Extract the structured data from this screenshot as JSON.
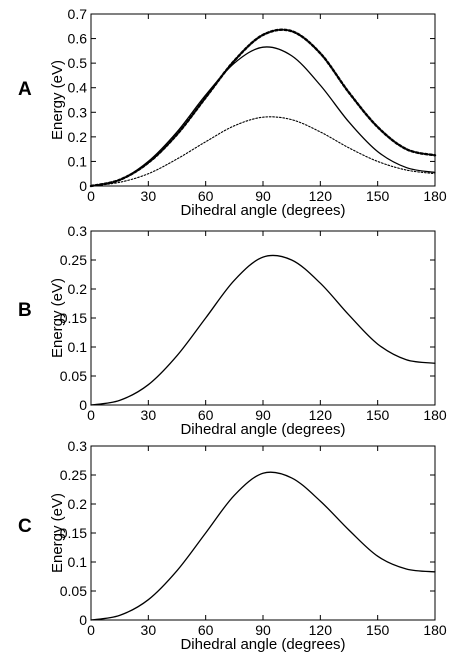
{
  "chart_data": [
    {
      "type": "line",
      "panel_label": "A",
      "xlabel": "Dihedral angle (degrees)",
      "ylabel": "Energy (eV)",
      "xlim": [
        0,
        180
      ],
      "ylim": [
        0,
        0.7
      ],
      "xticks": [
        0,
        30,
        60,
        90,
        120,
        150,
        180
      ],
      "yticks": [
        0,
        0.1,
        0.2,
        0.3,
        0.4,
        0.5,
        0.6,
        0.7
      ],
      "grid": false,
      "series": [
        {
          "style": "solid",
          "x": [
            0,
            15,
            30,
            45,
            60,
            75,
            90,
            105,
            120,
            135,
            150,
            165,
            180
          ],
          "y": [
            0,
            0.025,
            0.1,
            0.22,
            0.37,
            0.5,
            0.565,
            0.53,
            0.41,
            0.26,
            0.14,
            0.075,
            0.055
          ]
        },
        {
          "style": "bold-dotted",
          "x": [
            0,
            15,
            30,
            45,
            60,
            75,
            90,
            105,
            120,
            135,
            150,
            165,
            180
          ],
          "y": [
            0,
            0.025,
            0.095,
            0.21,
            0.36,
            0.51,
            0.615,
            0.63,
            0.54,
            0.38,
            0.24,
            0.15,
            0.125
          ]
        },
        {
          "style": "thin-dotted",
          "x": [
            0,
            15,
            30,
            45,
            60,
            75,
            90,
            105,
            120,
            135,
            150,
            165,
            180
          ],
          "y": [
            0,
            0.015,
            0.05,
            0.11,
            0.18,
            0.245,
            0.28,
            0.27,
            0.22,
            0.155,
            0.1,
            0.065,
            0.05
          ]
        }
      ]
    },
    {
      "type": "line",
      "panel_label": "B",
      "xlabel": "Dihedral angle (degrees)",
      "ylabel": "Energy (eV)",
      "xlim": [
        0,
        180
      ],
      "ylim": [
        0,
        0.3
      ],
      "xticks": [
        0,
        30,
        60,
        90,
        120,
        150,
        180
      ],
      "yticks": [
        0,
        0.05,
        0.1,
        0.15,
        0.2,
        0.25,
        0.3
      ],
      "grid": false,
      "series": [
        {
          "style": "solid",
          "x": [
            0,
            15,
            30,
            45,
            60,
            75,
            90,
            105,
            120,
            135,
            150,
            165,
            180
          ],
          "y": [
            0,
            0.008,
            0.035,
            0.085,
            0.15,
            0.215,
            0.255,
            0.25,
            0.21,
            0.155,
            0.105,
            0.078,
            0.072
          ]
        }
      ]
    },
    {
      "type": "line",
      "panel_label": "C",
      "xlabel": "Dihedral angle (degrees)",
      "ylabel": "Energy (eV)",
      "xlim": [
        0,
        180
      ],
      "ylim": [
        0,
        0.3
      ],
      "xticks": [
        0,
        30,
        60,
        90,
        120,
        150,
        180
      ],
      "yticks": [
        0,
        0.05,
        0.1,
        0.15,
        0.2,
        0.25,
        0.3
      ],
      "grid": false,
      "series": [
        {
          "style": "solid",
          "x": [
            0,
            15,
            30,
            45,
            60,
            75,
            90,
            105,
            120,
            135,
            150,
            165,
            180
          ],
          "y": [
            0,
            0.008,
            0.035,
            0.085,
            0.15,
            0.215,
            0.253,
            0.245,
            0.205,
            0.155,
            0.11,
            0.088,
            0.083
          ]
        }
      ]
    }
  ]
}
